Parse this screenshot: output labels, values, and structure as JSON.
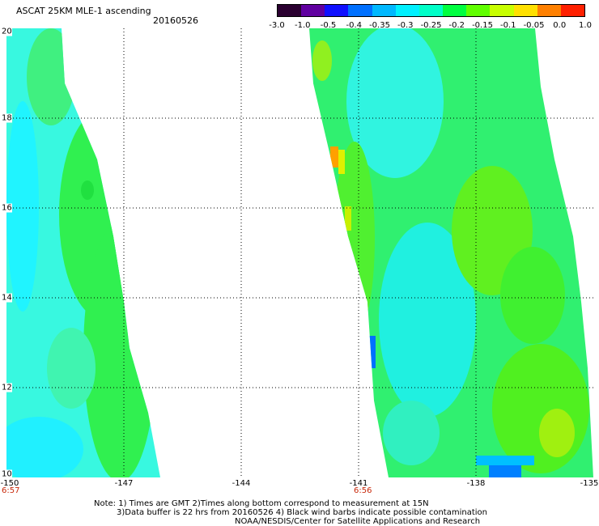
{
  "header": {
    "title": "ASCAT 25KM MLE-1 ascending",
    "date": "20160526"
  },
  "colorbar": {
    "labels": [
      "-3.0",
      "-1.0",
      "-0.5",
      "-0.4",
      "-0.35",
      "-0.3",
      "-0.25",
      "-0.2",
      "-0.15",
      "-0.1",
      "-0.05",
      "0.0",
      "1.0"
    ],
    "colors": [
      "#2a0030",
      "#6000a0",
      "#1010ff",
      "#0070ff",
      "#00b8ff",
      "#00f0ff",
      "#00ffc8",
      "#00ff40",
      "#60ff00",
      "#c8ff00",
      "#ffe000",
      "#ff8000",
      "#ff2000"
    ]
  },
  "map": {
    "y_axis": {
      "labels": [
        "20",
        "18",
        "16",
        "14",
        "12",
        "10"
      ],
      "values": [
        20,
        18,
        16,
        14,
        12,
        10
      ],
      "range": [
        10,
        20
      ]
    },
    "x_axis": {
      "labels": [
        "-150",
        "-147",
        "-144",
        "-141",
        "-138",
        "-135"
      ],
      "values": [
        -150,
        -147,
        -144,
        -141,
        -138,
        -135
      ],
      "range": [
        -150,
        -135
      ]
    },
    "grid": "dotted",
    "time_labels": [
      {
        "text": "6:57",
        "lon": -150
      },
      {
        "text": "6:56",
        "lon": -141
      }
    ],
    "colors": {
      "cyan": "#00ffff",
      "light_cyan": "#40f8f8",
      "green": "#20f040",
      "bright_green": "#40ff20",
      "yellow_green": "#a0ff10",
      "yellow": "#e0f000",
      "orange": "#ffa000",
      "blue": "#0070ff"
    }
  },
  "notes": {
    "line1": "Note: 1) Times are GMT 2)Times along bottom correspond to measurement at 15N",
    "line2": "3)Data buffer is 22 hrs from 20160526 4) Black wind barbs indicate possible contamination",
    "line3": "NOAA/NESDIS/Center for Satellite Applications and Research"
  }
}
